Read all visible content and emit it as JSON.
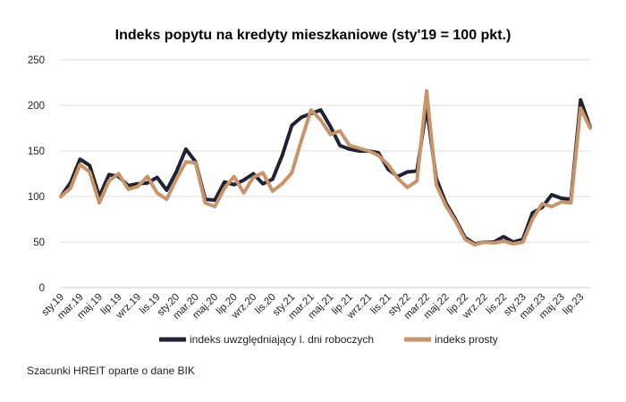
{
  "chart_data": {
    "type": "line",
    "title": "Indeks popytu na kredyty mieszkaniowe (sty'19 = 100 pkt.)",
    "xlabel": "",
    "ylabel": "",
    "ylim": [
      0,
      250
    ],
    "yticks": [
      0,
      50,
      100,
      150,
      200,
      250
    ],
    "grid": "horizontal",
    "legend_position": "bottom",
    "categories": [
      "sty.19",
      "lut.19",
      "mar.19",
      "kwi.19",
      "maj.19",
      "cze.19",
      "lip.19",
      "sie.19",
      "wrz.19",
      "paź.19",
      "lis.19",
      "gru.19",
      "sty.20",
      "lut.20",
      "mar.20",
      "kwi.20",
      "maj.20",
      "cze.20",
      "lip.20",
      "sie.20",
      "wrz.20",
      "paź.20",
      "lis.20",
      "gru.20",
      "sty.21",
      "lut.21",
      "mar.21",
      "kwi.21",
      "maj.21",
      "cze.21",
      "lip.21",
      "sie.21",
      "wrz.21",
      "paź.21",
      "lis.21",
      "gru.21",
      "sty.22",
      "lut.22",
      "mar.22",
      "kwi.22",
      "maj.22",
      "cze.22",
      "lip.22",
      "sie.22",
      "wrz.22",
      "paź.22",
      "lis.22",
      "gru.22",
      "sty.23",
      "lut.23",
      "mar.23",
      "kwi.23",
      "maj.23",
      "cze.23",
      "lip.23",
      "sie.23"
    ],
    "tick_labels": [
      "sty.19",
      "mar.19",
      "maj.19",
      "lip.19",
      "wrz.19",
      "lis.19",
      "sty.20",
      "mar.20",
      "maj.20",
      "lip.20",
      "wrz.20",
      "lis.20",
      "sty.21",
      "mar.21",
      "maj.21",
      "lip.21",
      "wrz.21",
      "lis.21",
      "sty.22",
      "mar.22",
      "maj.22",
      "lip.22",
      "wrz.22",
      "lis.22",
      "sty.23",
      "mar.23",
      "maj.23",
      "lip.23"
    ],
    "series": [
      {
        "name": "indeks uwzględniający l. dni roboczych",
        "color": "#1f2233",
        "values": [
          100,
          115,
          141,
          134,
          100,
          124,
          122,
          112,
          114,
          115,
          121,
          107,
          127,
          152,
          138,
          97,
          96,
          116,
          113,
          118,
          125,
          114,
          119,
          145,
          178,
          187,
          191,
          195,
          177,
          156,
          152,
          150,
          150,
          148,
          130,
          122,
          127,
          128,
          198,
          120,
          93,
          75,
          55,
          48,
          50,
          50,
          56,
          50,
          53,
          82,
          88,
          102,
          98,
          97,
          206,
          176
        ]
      },
      {
        "name": "indeks prosty",
        "color": "#c8956a",
        "values": [
          100,
          109,
          135,
          127,
          93,
          117,
          125,
          108,
          111,
          122,
          104,
          97,
          119,
          138,
          137,
          93,
          89,
          109,
          122,
          104,
          121,
          126,
          106,
          114,
          126,
          162,
          195,
          184,
          168,
          172,
          156,
          153,
          150,
          145,
          135,
          120,
          110,
          117,
          216,
          113,
          90,
          73,
          53,
          47,
          50,
          49,
          51,
          48,
          50,
          75,
          92,
          89,
          94,
          93,
          197,
          175
        ]
      }
    ]
  },
  "source_note": "Szacunki HREIT oparte o dane BIK"
}
